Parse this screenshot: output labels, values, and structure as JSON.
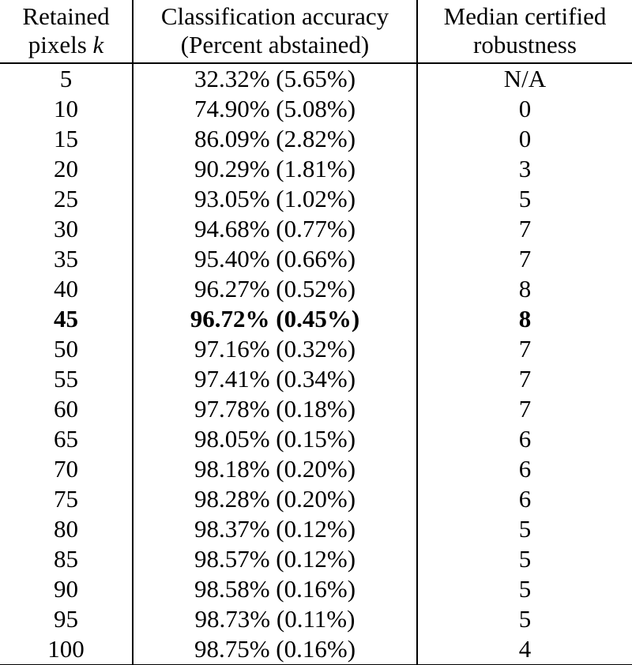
{
  "page": {
    "background_color": "#ffffff",
    "text_color": "#000000"
  },
  "chart_data": {
    "type": "table",
    "columns": [
      {
        "line1": "Retained",
        "line2": "pixels",
        "math": "k"
      },
      {
        "line1": "Classification accuracy",
        "line2": "(Percent abstained)"
      },
      {
        "line1": "Median certified",
        "line2": "robustness"
      }
    ],
    "rows": [
      {
        "k": "5",
        "accuracy": "32.32% (5.65%)",
        "robustness": "N/A",
        "bold": false
      },
      {
        "k": "10",
        "accuracy": "74.90% (5.08%)",
        "robustness": "0",
        "bold": false
      },
      {
        "k": "15",
        "accuracy": "86.09% (2.82%)",
        "robustness": "0",
        "bold": false
      },
      {
        "k": "20",
        "accuracy": "90.29% (1.81%)",
        "robustness": "3",
        "bold": false
      },
      {
        "k": "25",
        "accuracy": "93.05% (1.02%)",
        "robustness": "5",
        "bold": false
      },
      {
        "k": "30",
        "accuracy": "94.68% (0.77%)",
        "robustness": "7",
        "bold": false
      },
      {
        "k": "35",
        "accuracy": "95.40% (0.66%)",
        "robustness": "7",
        "bold": false
      },
      {
        "k": "40",
        "accuracy": "96.27% (0.52%)",
        "robustness": "8",
        "bold": false
      },
      {
        "k": "45",
        "accuracy": "96.72% (0.45%)",
        "robustness": "8",
        "bold": true
      },
      {
        "k": "50",
        "accuracy": "97.16% (0.32%)",
        "robustness": "7",
        "bold": false
      },
      {
        "k": "55",
        "accuracy": "97.41% (0.34%)",
        "robustness": "7",
        "bold": false
      },
      {
        "k": "60",
        "accuracy": "97.78% (0.18%)",
        "robustness": "7",
        "bold": false
      },
      {
        "k": "65",
        "accuracy": "98.05% (0.15%)",
        "robustness": "6",
        "bold": false
      },
      {
        "k": "70",
        "accuracy": "98.18% (0.20%)",
        "robustness": "6",
        "bold": false
      },
      {
        "k": "75",
        "accuracy": "98.28% (0.20%)",
        "robustness": "6",
        "bold": false
      },
      {
        "k": "80",
        "accuracy": "98.37% (0.12%)",
        "robustness": "5",
        "bold": false
      },
      {
        "k": "85",
        "accuracy": "98.57% (0.12%)",
        "robustness": "5",
        "bold": false
      },
      {
        "k": "90",
        "accuracy": "98.58% (0.16%)",
        "robustness": "5",
        "bold": false
      },
      {
        "k": "95",
        "accuracy": "98.73% (0.11%)",
        "robustness": "5",
        "bold": false
      },
      {
        "k": "100",
        "accuracy": "98.75% (0.16%)",
        "robustness": "4",
        "bold": false
      }
    ]
  }
}
